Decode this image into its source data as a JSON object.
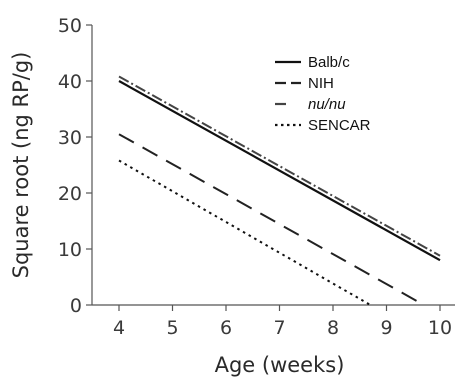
{
  "chart_data": {
    "type": "line",
    "title": "",
    "xlabel": "Age (weeks)",
    "ylabel": "Square root (ng RP/g)",
    "xlim": [
      3.5,
      10.3
    ],
    "ylim": [
      0,
      50
    ],
    "x_ticks": [
      "4",
      "5",
      "6",
      "7",
      "8",
      "9",
      "10"
    ],
    "y_ticks": [
      "0",
      "10",
      "20",
      "30",
      "40",
      "50"
    ],
    "grid": false,
    "legend_position": "top-right",
    "series": [
      {
        "name": "Balb/c",
        "style": "solid",
        "color": "#111111",
        "x": [
          4,
          10
        ],
        "y": [
          40,
          8
        ]
      },
      {
        "name": "NIH",
        "style": "long-dash",
        "color": "#222222",
        "x": [
          4,
          9.7
        ],
        "y": [
          30.5,
          0
        ]
      },
      {
        "name": "nu/nu",
        "style": "dash-dot",
        "color": "#444444",
        "x": [
          4,
          10
        ],
        "y": [
          40.8,
          8.8
        ]
      },
      {
        "name": "SENCAR",
        "style": "dotted",
        "color": "#111111",
        "x": [
          4,
          8.7
        ],
        "y": [
          25.8,
          0
        ]
      }
    ]
  }
}
